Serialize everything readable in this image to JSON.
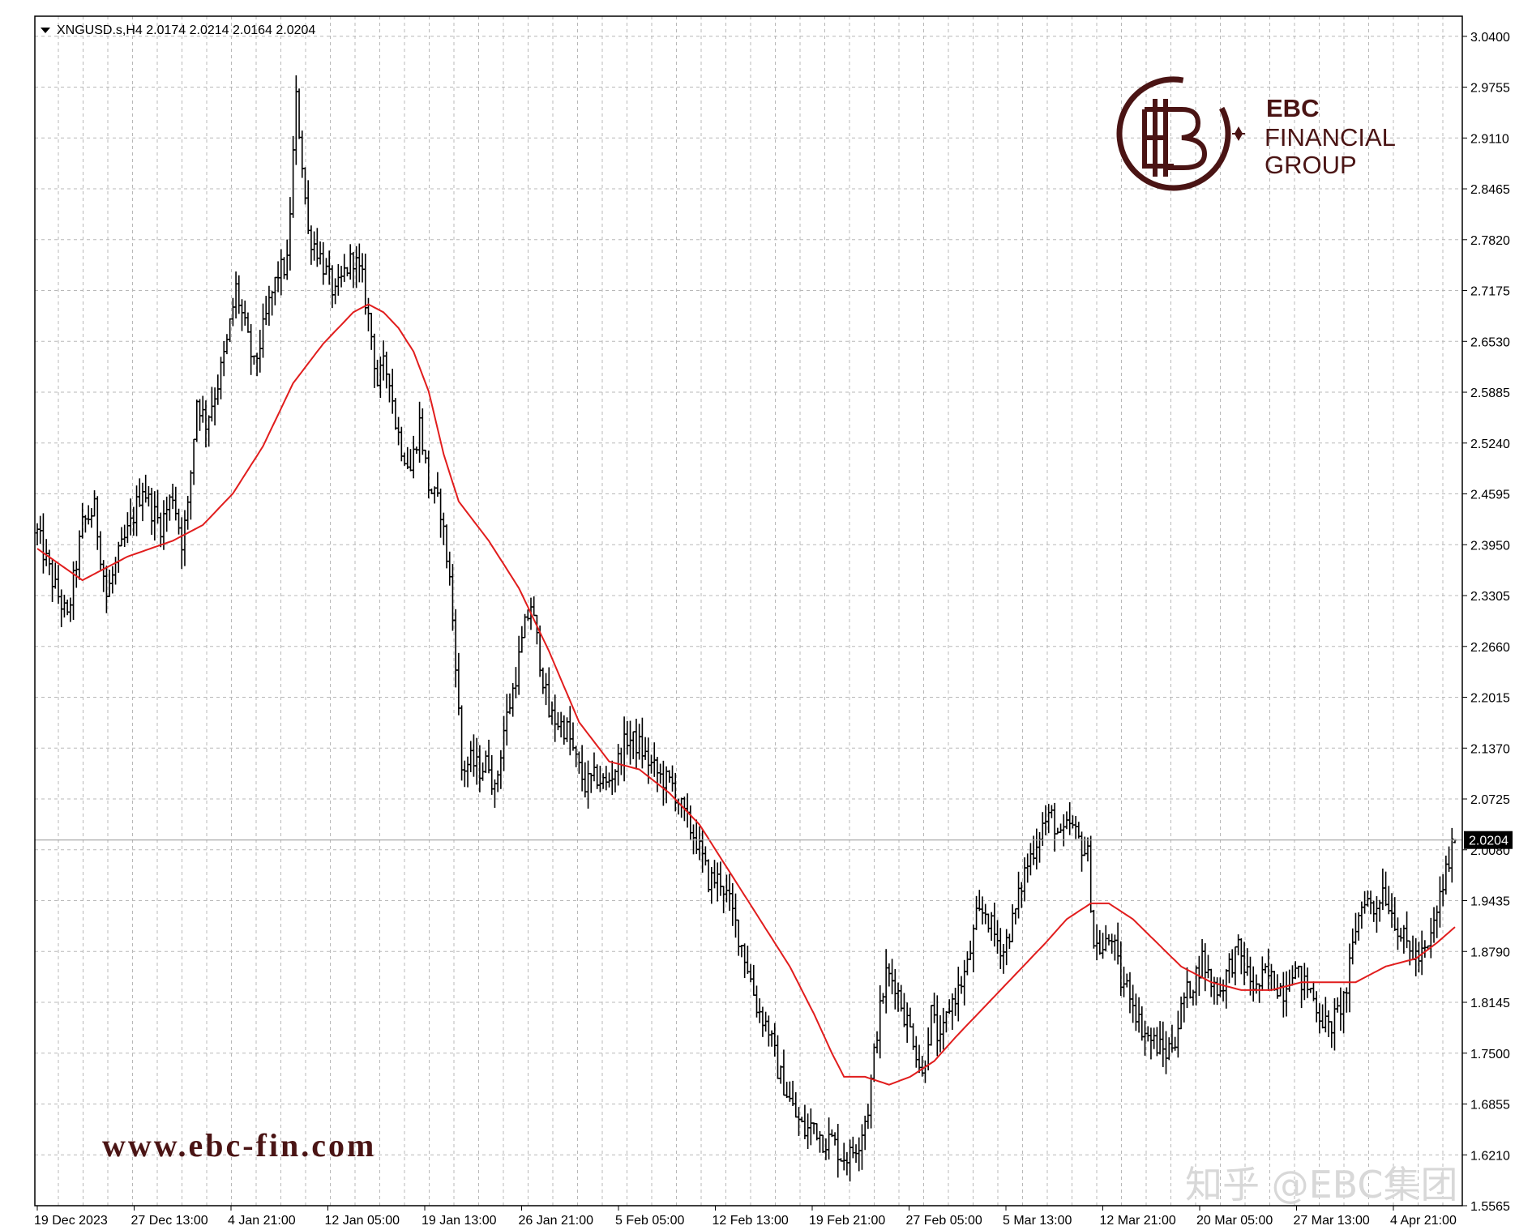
{
  "chart_data": {
    "type": "ohlc",
    "title": "XNGUSD.s,H4  2.0174 2.0214 2.0164 2.0204",
    "symbol": "XNGUSD.s",
    "timeframe": "H4",
    "last_bar": {
      "open": 2.0174,
      "high": 2.0214,
      "low": 2.0164,
      "close": 2.0204
    },
    "current_price": 2.0204,
    "current_price_label": "2.0204",
    "ylim": [
      1.5565,
      3.0655
    ],
    "y_ticks": [
      "3.0400",
      "2.9755",
      "2.9110",
      "2.8465",
      "2.7820",
      "2.7175",
      "2.6530",
      "2.5885",
      "2.5240",
      "2.4595",
      "2.3950",
      "2.3305",
      "2.2660",
      "2.2015",
      "2.1370",
      "2.0725",
      "2.0080",
      "1.9435",
      "1.8790",
      "1.8145",
      "1.7500",
      "1.6855",
      "1.6210",
      "1.5565"
    ],
    "x_ticks": [
      "19 Dec 2023",
      "27 Dec 13:00",
      "4 Jan 21:00",
      "12 Jan 05:00",
      "19 Jan 13:00",
      "26 Jan 21:00",
      "5 Feb 05:00",
      "12 Feb 13:00",
      "19 Feb 21:00",
      "27 Feb 05:00",
      "5 Mar 13:00",
      "12 Mar 21:00",
      "20 Mar 05:00",
      "27 Mar 13:00",
      "4 Apr 21:00"
    ],
    "grid": true,
    "series": [
      {
        "type": "ohlc",
        "color": "#000000",
        "close_path": [
          [
            0,
            2.41
          ],
          [
            5,
            2.35
          ],
          [
            10,
            2.3
          ],
          [
            15,
            2.42
          ],
          [
            19,
            2.44
          ],
          [
            23,
            2.33
          ],
          [
            27,
            2.38
          ],
          [
            31,
            2.42
          ],
          [
            35,
            2.47
          ],
          [
            38,
            2.44
          ],
          [
            41,
            2.42
          ],
          [
            45,
            2.46
          ],
          [
            48,
            2.4
          ],
          [
            50,
            2.44
          ],
          [
            53,
            2.58
          ],
          [
            56,
            2.55
          ],
          [
            60,
            2.6
          ],
          [
            63,
            2.65
          ],
          [
            66,
            2.72
          ],
          [
            69,
            2.67
          ],
          [
            72,
            2.62
          ],
          [
            74,
            2.65
          ],
          [
            77,
            2.7
          ],
          [
            80,
            2.74
          ],
          [
            83,
            2.75
          ],
          [
            86,
            2.96
          ],
          [
            88,
            2.88
          ],
          [
            90,
            2.79
          ],
          [
            93,
            2.77
          ],
          [
            96,
            2.74
          ],
          [
            99,
            2.71
          ],
          [
            102,
            2.74
          ],
          [
            105,
            2.76
          ],
          [
            108,
            2.73
          ],
          [
            111,
            2.66
          ],
          [
            113,
            2.6
          ],
          [
            115,
            2.62
          ],
          [
            117,
            2.61
          ],
          [
            119,
            2.55
          ],
          [
            121,
            2.52
          ],
          [
            124,
            2.49
          ],
          [
            127,
            2.55
          ],
          [
            130,
            2.47
          ],
          [
            134,
            2.44
          ],
          [
            137,
            2.35
          ],
          [
            139,
            2.25
          ],
          [
            141,
            2.11
          ],
          [
            144,
            2.12
          ],
          [
            147,
            2.11
          ],
          [
            150,
            2.12
          ],
          [
            152,
            2.08
          ],
          [
            155,
            2.16
          ],
          [
            158,
            2.21
          ],
          [
            162,
            2.29
          ],
          [
            164,
            2.32
          ],
          [
            167,
            2.25
          ],
          [
            170,
            2.18
          ],
          [
            173,
            2.17
          ],
          [
            176,
            2.16
          ],
          [
            179,
            2.12
          ],
          [
            182,
            2.09
          ],
          [
            186,
            2.1
          ],
          [
            189,
            2.09
          ],
          [
            193,
            2.12
          ],
          [
            196,
            2.15
          ],
          [
            200,
            2.14
          ],
          [
            203,
            2.12
          ],
          [
            207,
            2.1
          ],
          [
            211,
            2.09
          ],
          [
            215,
            2.05
          ],
          [
            219,
            2.02
          ],
          [
            223,
            1.97
          ],
          [
            227,
            1.97
          ],
          [
            230,
            1.94
          ],
          [
            233,
            1.9
          ],
          [
            236,
            1.86
          ],
          [
            239,
            1.81
          ],
          [
            243,
            1.78
          ],
          [
            246,
            1.73
          ],
          [
            249,
            1.7
          ],
          [
            252,
            1.67
          ],
          [
            255,
            1.65
          ],
          [
            258,
            1.66
          ],
          [
            261,
            1.64
          ],
          [
            264,
            1.64
          ],
          [
            267,
            1.62
          ],
          [
            270,
            1.62
          ],
          [
            273,
            1.64
          ],
          [
            276,
            1.68
          ],
          [
            279,
            1.78
          ],
          [
            282,
            1.85
          ],
          [
            285,
            1.84
          ],
          [
            288,
            1.8
          ],
          [
            291,
            1.77
          ],
          [
            294,
            1.72
          ],
          [
            297,
            1.8
          ],
          [
            300,
            1.76
          ],
          [
            303,
            1.81
          ],
          [
            306,
            1.83
          ],
          [
            309,
            1.86
          ],
          [
            312,
            1.92
          ],
          [
            315,
            1.93
          ],
          [
            318,
            1.9
          ],
          [
            321,
            1.88
          ],
          [
            325,
            1.93
          ],
          [
            328,
            1.98
          ],
          [
            331,
            2.01
          ],
          [
            334,
            2.04
          ],
          [
            337,
            2.05
          ],
          [
            340,
            2.02
          ],
          [
            343,
            2.04
          ],
          [
            346,
            2.02
          ],
          [
            349,
            2.0
          ],
          [
            351,
            1.89
          ],
          [
            354,
            1.88
          ],
          [
            357,
            1.9
          ],
          [
            360,
            1.84
          ],
          [
            363,
            1.83
          ],
          [
            366,
            1.79
          ],
          [
            369,
            1.77
          ],
          [
            372,
            1.76
          ],
          [
            375,
            1.75
          ],
          [
            378,
            1.77
          ],
          [
            381,
            1.82
          ],
          [
            384,
            1.84
          ],
          [
            387,
            1.87
          ],
          [
            390,
            1.84
          ],
          [
            393,
            1.83
          ],
          [
            396,
            1.86
          ],
          [
            399,
            1.88
          ],
          [
            402,
            1.85
          ],
          [
            405,
            1.83
          ],
          [
            408,
            1.85
          ],
          [
            411,
            1.84
          ],
          [
            414,
            1.83
          ],
          [
            417,
            1.86
          ],
          [
            420,
            1.84
          ],
          [
            423,
            1.83
          ],
          [
            426,
            1.8
          ],
          [
            429,
            1.78
          ],
          [
            432,
            1.8
          ],
          [
            435,
            1.83
          ],
          [
            438,
            1.91
          ],
          [
            441,
            1.95
          ],
          [
            444,
            1.93
          ],
          [
            447,
            1.96
          ],
          [
            450,
            1.93
          ],
          [
            453,
            1.9
          ],
          [
            456,
            1.88
          ],
          [
            459,
            1.87
          ],
          [
            462,
            1.88
          ],
          [
            465,
            1.93
          ],
          [
            468,
            1.98
          ],
          [
            471,
            2.02
          ]
        ]
      },
      {
        "type": "line",
        "color": "#e11d1d",
        "points": [
          [
            0,
            2.39
          ],
          [
            15,
            2.35
          ],
          [
            30,
            2.38
          ],
          [
            45,
            2.4
          ],
          [
            55,
            2.42
          ],
          [
            65,
            2.46
          ],
          [
            75,
            2.52
          ],
          [
            85,
            2.6
          ],
          [
            95,
            2.65
          ],
          [
            105,
            2.69
          ],
          [
            110,
            2.7
          ],
          [
            115,
            2.69
          ],
          [
            120,
            2.67
          ],
          [
            125,
            2.64
          ],
          [
            130,
            2.59
          ],
          [
            135,
            2.51
          ],
          [
            140,
            2.45
          ],
          [
            150,
            2.4
          ],
          [
            160,
            2.34
          ],
          [
            170,
            2.26
          ],
          [
            180,
            2.17
          ],
          [
            190,
            2.12
          ],
          [
            200,
            2.11
          ],
          [
            210,
            2.08
          ],
          [
            220,
            2.04
          ],
          [
            230,
            1.98
          ],
          [
            240,
            1.92
          ],
          [
            250,
            1.86
          ],
          [
            258,
            1.8
          ],
          [
            264,
            1.75
          ],
          [
            268,
            1.72
          ],
          [
            275,
            1.72
          ],
          [
            283,
            1.71
          ],
          [
            290,
            1.72
          ],
          [
            298,
            1.74
          ],
          [
            305,
            1.77
          ],
          [
            315,
            1.81
          ],
          [
            325,
            1.85
          ],
          [
            335,
            1.89
          ],
          [
            342,
            1.92
          ],
          [
            350,
            1.94
          ],
          [
            356,
            1.94
          ],
          [
            364,
            1.92
          ],
          [
            372,
            1.89
          ],
          [
            380,
            1.86
          ],
          [
            390,
            1.84
          ],
          [
            400,
            1.83
          ],
          [
            410,
            1.83
          ],
          [
            420,
            1.84
          ],
          [
            430,
            1.84
          ],
          [
            438,
            1.84
          ],
          [
            448,
            1.86
          ],
          [
            458,
            1.87
          ],
          [
            465,
            1.89
          ],
          [
            471,
            1.91
          ]
        ]
      }
    ]
  },
  "logo": {
    "brand_line1": "EBC",
    "brand_line2": "FINANCIAL",
    "brand_line3": "GROUP",
    "color": "#4a1414"
  },
  "website": "www.ebc-fin.com",
  "watermark": "知乎 @EBC集团",
  "colors": {
    "grid": "#b8b8b8",
    "ma_line": "#e11d1d",
    "bars": "#000000",
    "price_tag_bg": "#000000",
    "price_tag_text": "#ffffff"
  }
}
